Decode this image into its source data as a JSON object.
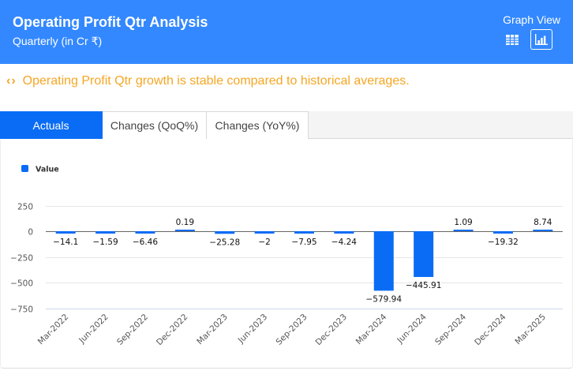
{
  "header": {
    "title": "Operating Profit Qtr Analysis",
    "subtitle": "Quarterly (in Cr ₹)",
    "view_label": "Graph View",
    "view_buttons": [
      {
        "name": "table-view",
        "icon": "table-grid-icon",
        "active": false
      },
      {
        "name": "graph-view",
        "icon": "bar-chart-icon",
        "active": true
      }
    ]
  },
  "insight": {
    "icon": "code-brackets-icon",
    "glyph": "‹›",
    "text": "Operating Profit Qtr growth is stable compared to historical averages.",
    "color": "#f5a623"
  },
  "tabs": [
    {
      "label": "Actuals",
      "active": true
    },
    {
      "label": "Changes (QoQ%)",
      "active": false
    },
    {
      "label": "Changes (YoY%)",
      "active": false
    }
  ],
  "colors": {
    "header_bg": "#3388ff",
    "bar": "#0a6cf5",
    "active_tab": "#0a6cf5"
  },
  "chart_data": {
    "type": "bar",
    "title": "",
    "xlabel": "",
    "ylabel": "",
    "legend": {
      "entries": [
        "Value"
      ],
      "position": "top-left"
    },
    "grid": true,
    "ylim": [
      -750,
      250
    ],
    "yticks": [
      250,
      0,
      -250,
      -500,
      -750
    ],
    "ytick_labels": [
      "250",
      "0",
      "−250",
      "−500",
      "−750"
    ],
    "categories": [
      "Mar-2022",
      "Jun-2022",
      "Sep-2022",
      "Dec-2022",
      "Mar-2023",
      "Jun-2023",
      "Sep-2023",
      "Dec-2023",
      "Mar-2024",
      "Jun-2024",
      "Sep-2024",
      "Dec-2024",
      "Mar-2025"
    ],
    "series": [
      {
        "name": "Value",
        "values": [
          -14.1,
          -1.59,
          -6.46,
          0.19,
          -25.28,
          -2,
          -7.95,
          -4.24,
          -579.94,
          -445.91,
          1.09,
          -19.32,
          8.74
        ],
        "labels": [
          "−14.1",
          "−1.59",
          "−6.46",
          "0.19",
          "−25.28",
          "−2",
          "−7.95",
          "−4.24",
          "−579.94",
          "−445.91",
          "1.09",
          "−19.32",
          "8.74"
        ]
      }
    ]
  }
}
